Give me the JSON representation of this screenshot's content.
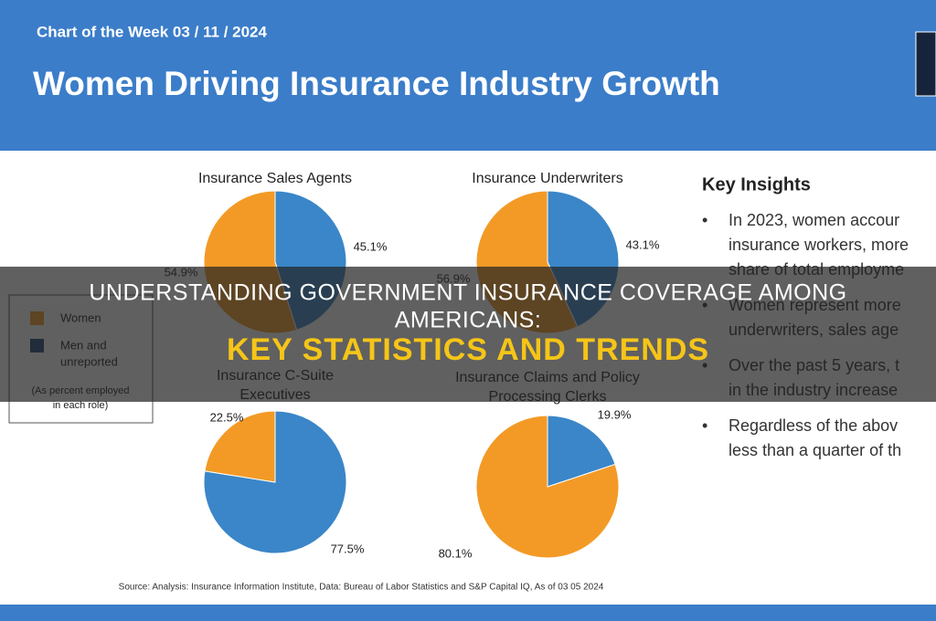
{
  "header": {
    "kicker": "Chart of the Week 03 / 11 / 2024",
    "title": "Women Driving Insurance Industry Growth"
  },
  "legend": {
    "labels": [
      "Women",
      [
        "Men and",
        "unreported"
      ]
    ],
    "colors": [
      "#f39a26",
      "#1f4a78"
    ],
    "note": [
      "(As percent employed",
      "in each role)"
    ]
  },
  "insights": {
    "heading": "Key Insights",
    "bullets": [
      [
        "In 2023, women accour",
        "insurance workers, more",
        "share of total employme"
      ],
      [
        "Women represent more",
        "underwriters, sales age"
      ],
      [
        "Over the past 5 years, t",
        "in the industry increase"
      ],
      [
        "Regardless of the abov",
        "less than a quarter of th"
      ]
    ]
  },
  "source": "Source: Analysis: Insurance Information Institute, Data: Bureau of Labor Statistics and S&P Capital IQ, As of 03 05 2024",
  "overlay": {
    "lines": [
      "UNDERSTANDING GOVERNMENT INSURANCE COVERAGE AMONG",
      "AMERICANS:"
    ],
    "highlight": "KEY STATISTICS AND TRENDS"
  },
  "chart_data": [
    {
      "type": "pie",
      "title": [
        "Insurance Sales Agents"
      ],
      "values": [
        54.9,
        45.1
      ],
      "value_labels": [
        "54.9%",
        "45.1%"
      ],
      "colors": [
        "#f39a26",
        "#3a86c8"
      ]
    },
    {
      "type": "pie",
      "title": [
        "Insurance Underwriters"
      ],
      "values": [
        56.9,
        43.1
      ],
      "value_labels": [
        "56.9%",
        "43.1%"
      ],
      "colors": [
        "#f39a26",
        "#3a86c8"
      ]
    },
    {
      "type": "pie",
      "title": [
        "Insurance C-Suite",
        "Executives"
      ],
      "values": [
        22.5,
        77.5
      ],
      "value_labels": [
        "22.5%",
        "77.5%"
      ],
      "colors": [
        "#f39a26",
        "#3a86c8"
      ]
    },
    {
      "type": "pie",
      "title": [
        "Insurance Claims and Policy",
        "Processing Clerks"
      ],
      "values": [
        80.1,
        19.9
      ],
      "value_labels": [
        "80.1%",
        "19.9%"
      ],
      "colors": [
        "#f39a26",
        "#3a86c8"
      ]
    }
  ]
}
